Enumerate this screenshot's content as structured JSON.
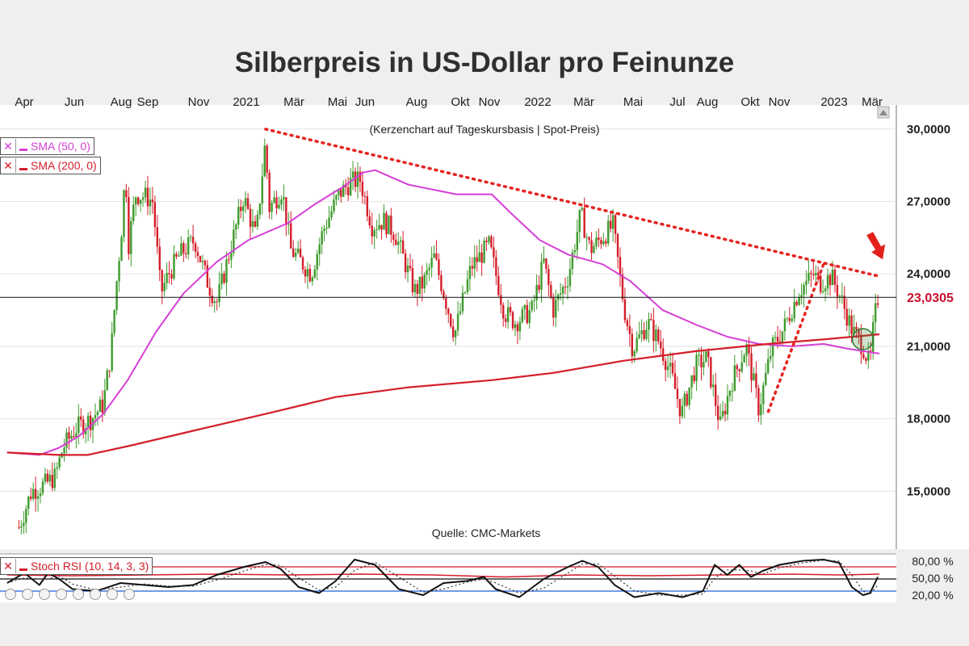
{
  "title": "Silberpreis in US-Dollar pro Feinunze",
  "subtitle": "(Kerzenchart auf Tageskursbasis | Spot-Preis)",
  "source": "Quelle: CMC-Markets",
  "legend": {
    "sma50": "SMA (50, 0)",
    "sma200": "SMA (200, 0)",
    "stoch": "Stoch RSI (10, 14, 3, 3)"
  },
  "current_price_label": "23,0305",
  "colors": {
    "background": "#efefef",
    "plot_background": "#ffffff",
    "up_candle": "#3e9a2c",
    "down_candle": "#d41e2a",
    "sma50": "#d63fd6",
    "sma200": "#d41e2a",
    "trendline": "#e52420",
    "price_label": "#c8102e",
    "stoch_line": "#111111",
    "stoch_rsi": "#d41e2a",
    "level_80": "#d41e2a",
    "level_20": "#1f5fd6"
  },
  "chart_data": [
    {
      "type": "candlestick",
      "title": "Silberpreis in US-Dollar pro Feinunze",
      "subtitle": "(Kerzenchart auf Tageskursbasis | Spot-Preis)",
      "x_ticks": [
        "Apr",
        "Jun",
        "Aug",
        "Sep",
        "Nov",
        "2021",
        "Mär",
        "Mai",
        "Jun",
        "Aug",
        "Okt",
        "Nov",
        "2022",
        "Mär",
        "Mai",
        "Jul",
        "Aug",
        "Okt",
        "Nov",
        "2023",
        "Mär"
      ],
      "y_ticks": [
        "15,0000",
        "18,0000",
        "21,0000",
        "24,0000",
        "27,0000",
        "30,0000"
      ],
      "ylim": [
        12.6,
        31.0
      ],
      "grid": true,
      "current_price": 23.0305,
      "close_path": [
        [
          "2020-03-25",
          13.5
        ],
        [
          "2020-04-10",
          15.0
        ],
        [
          "2020-04-28",
          15.3
        ],
        [
          "2020-05-10",
          15.6
        ],
        [
          "2020-05-20",
          16.8
        ],
        [
          "2020-06-05",
          17.6
        ],
        [
          "2020-06-25",
          18.0
        ],
        [
          "2020-07-10",
          18.6
        ],
        [
          "2020-07-20",
          20.8
        ],
        [
          "2020-07-26",
          23.3
        ],
        [
          "2020-08-04",
          26.5
        ],
        [
          "2020-08-07",
          28.6
        ],
        [
          "2020-08-11",
          25.2
        ],
        [
          "2020-08-20",
          27.3
        ],
        [
          "2020-09-02",
          27.2
        ],
        [
          "2020-09-11",
          27.0
        ],
        [
          "2020-09-21",
          23.2
        ],
        [
          "2020-10-01",
          24.0
        ],
        [
          "2020-10-15",
          24.8
        ],
        [
          "2020-11-03",
          25.4
        ],
        [
          "2020-11-20",
          23.6
        ],
        [
          "2020-12-01",
          22.8
        ],
        [
          "2020-12-15",
          24.6
        ],
        [
          "2021-01-04",
          27.2
        ],
        [
          "2021-01-20",
          25.5
        ],
        [
          "2021-02-01",
          29.6
        ],
        [
          "2021-02-05",
          26.7
        ],
        [
          "2021-02-22",
          27.5
        ],
        [
          "2021-03-05",
          25.0
        ],
        [
          "2021-03-31",
          24.0
        ],
        [
          "2021-04-15",
          25.8
        ],
        [
          "2021-05-05",
          27.3
        ],
        [
          "2021-05-20",
          27.8
        ],
        [
          "2021-06-01",
          27.9
        ],
        [
          "2021-06-16",
          26.0
        ],
        [
          "2021-07-01",
          26.2
        ],
        [
          "2021-07-15",
          25.7
        ],
        [
          "2021-08-09",
          23.3
        ],
        [
          "2021-08-20",
          23.6
        ],
        [
          "2021-09-03",
          24.7
        ],
        [
          "2021-09-29",
          21.5
        ],
        [
          "2021-10-20",
          24.3
        ],
        [
          "2021-11-12",
          25.2
        ],
        [
          "2021-12-01",
          22.4
        ],
        [
          "2021-12-15",
          22.0
        ],
        [
          "2022-01-05",
          22.5
        ],
        [
          "2022-01-20",
          24.5
        ],
        [
          "2022-02-01",
          22.5
        ],
        [
          "2022-02-20",
          23.9
        ],
        [
          "2022-03-08",
          26.5
        ],
        [
          "2022-03-20",
          25.0
        ],
        [
          "2022-04-18",
          26.0
        ],
        [
          "2022-05-02",
          22.6
        ],
        [
          "2022-05-13",
          20.9
        ],
        [
          "2022-06-01",
          22.0
        ],
        [
          "2022-06-15",
          21.2
        ],
        [
          "2022-07-01",
          19.8
        ],
        [
          "2022-07-14",
          18.2
        ],
        [
          "2022-08-01",
          20.2
        ],
        [
          "2022-08-15",
          20.5
        ],
        [
          "2022-09-01",
          17.7
        ],
        [
          "2022-09-15",
          19.5
        ],
        [
          "2022-10-04",
          21.0
        ],
        [
          "2022-10-20",
          18.4
        ],
        [
          "2022-11-05",
          20.9
        ],
        [
          "2022-11-20",
          21.7
        ],
        [
          "2022-12-10",
          23.3
        ],
        [
          "2022-12-29",
          24.0
        ],
        [
          "2023-01-05",
          23.6
        ],
        [
          "2023-01-20",
          23.9
        ],
        [
          "2023-02-01",
          23.0
        ],
        [
          "2023-02-15",
          21.7
        ],
        [
          "2023-03-01",
          21.0
        ],
        [
          "2023-03-10",
          20.2
        ],
        [
          "2023-03-15",
          22.0
        ],
        [
          "2023-03-20",
          23.0
        ]
      ],
      "series": [
        {
          "name": "SMA (50, 0)",
          "points": [
            [
              "2020-03-10",
              16.6
            ],
            [
              "2020-04-20",
              16.5
            ],
            [
              "2020-05-15",
              16.8
            ],
            [
              "2020-06-10",
              17.3
            ],
            [
              "2020-07-10",
              18.2
            ],
            [
              "2020-08-10",
              19.6
            ],
            [
              "2020-09-15",
              21.6
            ],
            [
              "2020-10-20",
              23.2
            ],
            [
              "2020-12-01",
              24.5
            ],
            [
              "2021-01-10",
              25.4
            ],
            [
              "2021-03-01",
              26.1
            ],
            [
              "2021-04-05",
              26.9
            ],
            [
              "2021-05-10",
              27.6
            ],
            [
              "2021-06-05",
              28.2
            ],
            [
              "2021-06-20",
              28.3
            ],
            [
              "2021-08-01",
              27.7
            ],
            [
              "2021-10-01",
              27.3
            ],
            [
              "2021-11-15",
              27.3
            ],
            [
              "2021-12-10",
              26.5
            ],
            [
              "2022-01-15",
              25.4
            ],
            [
              "2022-02-20",
              24.8
            ],
            [
              "2022-04-05",
              24.4
            ],
            [
              "2022-05-10",
              23.7
            ],
            [
              "2022-06-20",
              22.5
            ],
            [
              "2022-08-01",
              21.9
            ],
            [
              "2022-09-10",
              21.4
            ],
            [
              "2022-10-20",
              21.1
            ],
            [
              "2022-12-01",
              21.0
            ],
            [
              "2023-01-10",
              21.1
            ],
            [
              "2023-02-10",
              20.9
            ],
            [
              "2023-03-22",
              20.7
            ]
          ]
        },
        {
          "name": "SMA (200, 0)",
          "points": [
            [
              "2020-03-10",
              16.6
            ],
            [
              "2020-05-15",
              16.5
            ],
            [
              "2020-06-20",
              16.5
            ],
            [
              "2020-08-15",
              16.9
            ],
            [
              "2020-11-01",
              17.5
            ],
            [
              "2021-02-01",
              18.2
            ],
            [
              "2021-05-01",
              18.9
            ],
            [
              "2021-08-01",
              19.3
            ],
            [
              "2021-11-15",
              19.6
            ],
            [
              "2022-02-01",
              19.9
            ],
            [
              "2022-05-01",
              20.4
            ],
            [
              "2022-08-01",
              20.8
            ],
            [
              "2022-11-01",
              21.1
            ],
            [
              "2023-01-15",
              21.3
            ],
            [
              "2023-03-22",
              21.5
            ]
          ]
        },
        {
          "name": "Stoch RSI (10, 14, 3, 3)",
          "levels": [
            "80,00 %",
            "50,00 %",
            "20,00 %"
          ],
          "ylim": [
            0,
            100
          ],
          "points": [
            [
              "2020-03-10",
              40
            ],
            [
              "2020-04-01",
              65
            ],
            [
              "2020-04-20",
              35
            ],
            [
              "2020-05-01",
              65
            ],
            [
              "2020-05-15",
              50
            ],
            [
              "2020-06-01",
              25
            ],
            [
              "2020-07-01",
              20
            ],
            [
              "2020-08-01",
              40
            ],
            [
              "2020-09-01",
              35
            ],
            [
              "2020-10-01",
              30
            ],
            [
              "2020-11-01",
              35
            ],
            [
              "2020-12-01",
              60
            ],
            [
              "2021-01-05",
              80
            ],
            [
              "2021-02-01",
              92
            ],
            [
              "2021-02-20",
              75
            ],
            [
              "2021-03-15",
              30
            ],
            [
              "2021-04-10",
              15
            ],
            [
              "2021-05-01",
              45
            ],
            [
              "2021-05-25",
              98
            ],
            [
              "2021-06-20",
              85
            ],
            [
              "2021-07-20",
              25
            ],
            [
              "2021-08-20",
              10
            ],
            [
              "2021-09-15",
              40
            ],
            [
              "2021-10-15",
              45
            ],
            [
              "2021-11-05",
              55
            ],
            [
              "2021-11-20",
              25
            ],
            [
              "2021-12-20",
              5
            ],
            [
              "2022-01-20",
              50
            ],
            [
              "2022-02-20",
              80
            ],
            [
              "2022-03-10",
              95
            ],
            [
              "2022-03-30",
              80
            ],
            [
              "2022-04-20",
              35
            ],
            [
              "2022-05-15",
              5
            ],
            [
              "2022-06-15",
              15
            ],
            [
              "2022-07-15",
              5
            ],
            [
              "2022-08-10",
              20
            ],
            [
              "2022-08-25",
              85
            ],
            [
              "2022-09-10",
              60
            ],
            [
              "2022-09-25",
              85
            ],
            [
              "2022-10-10",
              55
            ],
            [
              "2022-10-25",
              70
            ],
            [
              "2022-11-15",
              85
            ],
            [
              "2022-12-15",
              95
            ],
            [
              "2023-01-10",
              98
            ],
            [
              "2023-01-30",
              90
            ],
            [
              "2023-02-15",
              30
            ],
            [
              "2023-03-01",
              10
            ],
            [
              "2023-03-10",
              15
            ],
            [
              "2023-03-20",
              55
            ]
          ]
        },
        {
          "name": "Stoch RSI signal",
          "points": [
            [
              "2020-03-10",
              60
            ],
            [
              "2020-06-01",
              58
            ],
            [
              "2020-09-01",
              60
            ],
            [
              "2020-12-01",
              62
            ],
            [
              "2021-03-01",
              60
            ],
            [
              "2021-06-01",
              62
            ],
            [
              "2021-09-01",
              60
            ],
            [
              "2021-12-01",
              55
            ],
            [
              "2022-03-01",
              60
            ],
            [
              "2022-06-01",
              58
            ],
            [
              "2022-09-01",
              60
            ],
            [
              "2022-12-01",
              62
            ],
            [
              "2023-02-01",
              60
            ],
            [
              "2023-03-22",
              62
            ]
          ]
        }
      ],
      "annotations": [
        {
          "type": "trendline",
          "style": "dotted",
          "from": [
            "2021-02-01",
            30.0
          ],
          "to": [
            "2023-03-22",
            23.9
          ]
        },
        {
          "type": "trendline",
          "style": "dotted",
          "from": [
            "2022-11-01",
            18.3
          ],
          "to": [
            "2023-01-10",
            24.4
          ]
        },
        {
          "type": "horizontal_line",
          "y": 23.0305
        },
        {
          "type": "arrow",
          "direction": "down",
          "at": [
            "2023-03-20",
            24.6
          ]
        },
        {
          "type": "circle",
          "at": [
            "2023-03-01",
            21.3
          ]
        }
      ]
    }
  ]
}
